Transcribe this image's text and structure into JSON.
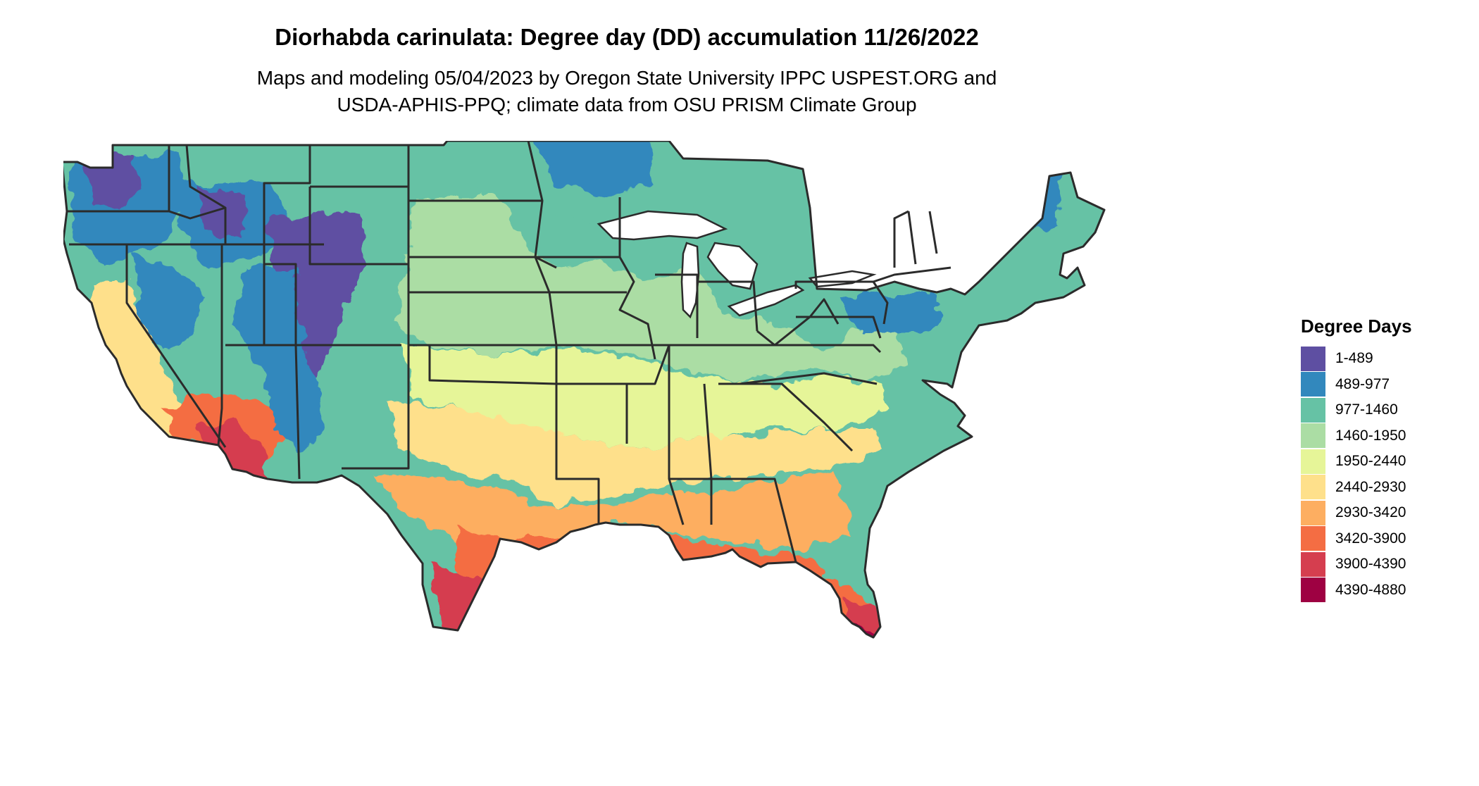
{
  "title": "Diorhabda carinulata: Degree day (DD) accumulation 11/26/2022",
  "subtitle_lines": [
    "Maps and modeling 05/04/2023 by Oregon State University IPPC USPEST.ORG and",
    "USDA-APHIS-PPQ; climate data from OSU PRISM Climate Group"
  ],
  "legend": {
    "title": "Degree Days",
    "items": [
      {
        "label": "1-489",
        "color": "#5e4fa2"
      },
      {
        "label": "489-977",
        "color": "#3288bd"
      },
      {
        "label": "977-1460",
        "color": "#66c2a5"
      },
      {
        "label": "1460-1950",
        "color": "#abdda4"
      },
      {
        "label": "1950-2440",
        "color": "#e6f598"
      },
      {
        "label": "2440-2930",
        "color": "#fee08b"
      },
      {
        "label": "2930-3420",
        "color": "#fdae61"
      },
      {
        "label": "3420-3900",
        "color": "#f46d43"
      },
      {
        "label": "3900-4390",
        "color": "#d53e4f"
      },
      {
        "label": "4390-4880",
        "color": "#9e0142"
      }
    ]
  },
  "map": {
    "region": "Contiguous United States",
    "background": "#ffffff",
    "border_color": "#2b2b2b"
  }
}
